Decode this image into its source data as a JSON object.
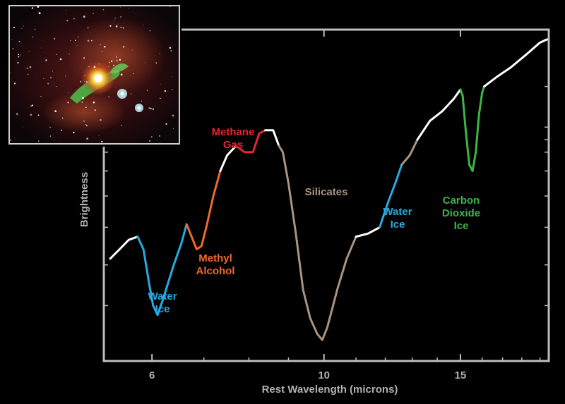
{
  "chart_data": {
    "type": "line",
    "title": "",
    "xlabel": "Rest Wavelength (microns)",
    "ylabel": "Brightness",
    "x_ticks": [
      "6",
      "10",
      "15"
    ],
    "xscale": "log",
    "xlim": [
      5.2,
      19.5
    ],
    "ylim": [
      0,
      1
    ],
    "grid": false,
    "colors": {
      "continuum": "#ffffff",
      "water_ice": "#29a9e0",
      "methyl_alcohol": "#ee6a2a",
      "methane_gas": "#e8242f",
      "silicates": "#a89482",
      "carbon_dioxide_ice": "#3cb54a",
      "axes": "#bdbdbd"
    },
    "series": [
      {
        "feature": "continuum",
        "points": [
          [
            5.3,
            0.3
          ],
          [
            5.45,
            0.33
          ],
          [
            5.6,
            0.36
          ],
          [
            5.75,
            0.37
          ]
        ]
      },
      {
        "feature": "water_ice",
        "points": [
          [
            5.75,
            0.37
          ],
          [
            5.85,
            0.33
          ],
          [
            5.95,
            0.22
          ],
          [
            6.02,
            0.15
          ],
          [
            6.1,
            0.12
          ],
          [
            6.2,
            0.17
          ],
          [
            6.4,
            0.28
          ],
          [
            6.55,
            0.35
          ],
          [
            6.65,
            0.41
          ]
        ]
      },
      {
        "feature": "methyl_alcohol",
        "points": [
          [
            6.65,
            0.41
          ],
          [
            6.75,
            0.37
          ],
          [
            6.85,
            0.33
          ],
          [
            6.95,
            0.34
          ],
          [
            7.05,
            0.4
          ],
          [
            7.2,
            0.5
          ],
          [
            7.35,
            0.58
          ]
        ]
      },
      {
        "feature": "continuum",
        "points": [
          [
            7.35,
            0.58
          ],
          [
            7.5,
            0.63
          ],
          [
            7.7,
            0.66
          ]
        ]
      },
      {
        "feature": "methane_gas",
        "points": [
          [
            7.7,
            0.66
          ],
          [
            7.9,
            0.64
          ],
          [
            8.1,
            0.64
          ],
          [
            8.25,
            0.7
          ],
          [
            8.4,
            0.71
          ]
        ]
      },
      {
        "feature": "continuum",
        "points": [
          [
            8.4,
            0.71
          ],
          [
            8.6,
            0.71
          ],
          [
            8.75,
            0.66
          ]
        ]
      },
      {
        "feature": "silicates",
        "points": [
          [
            8.75,
            0.66
          ],
          [
            8.85,
            0.64
          ],
          [
            9.0,
            0.54
          ],
          [
            9.2,
            0.38
          ],
          [
            9.4,
            0.2
          ],
          [
            9.6,
            0.11
          ],
          [
            9.8,
            0.06
          ],
          [
            9.95,
            0.04
          ],
          [
            10.1,
            0.08
          ],
          [
            10.4,
            0.2
          ],
          [
            10.7,
            0.3
          ],
          [
            11.0,
            0.37
          ]
        ]
      },
      {
        "feature": "continuum",
        "points": [
          [
            11.0,
            0.37
          ],
          [
            11.4,
            0.38
          ],
          [
            11.8,
            0.4
          ]
        ]
      },
      {
        "feature": "water_ice",
        "points": [
          [
            11.8,
            0.4
          ],
          [
            12.1,
            0.48
          ],
          [
            12.4,
            0.55
          ],
          [
            12.6,
            0.6
          ]
        ]
      },
      {
        "feature": "silicates",
        "points": [
          [
            12.6,
            0.6
          ],
          [
            12.9,
            0.63
          ],
          [
            13.2,
            0.68
          ]
        ]
      },
      {
        "feature": "continuum",
        "points": [
          [
            13.2,
            0.68
          ],
          [
            13.7,
            0.74
          ],
          [
            14.2,
            0.77
          ],
          [
            14.7,
            0.81
          ],
          [
            15.0,
            0.84
          ]
        ]
      },
      {
        "feature": "carbon_dioxide_ice",
        "points": [
          [
            15.0,
            0.84
          ],
          [
            15.1,
            0.82
          ],
          [
            15.25,
            0.7
          ],
          [
            15.4,
            0.6
          ],
          [
            15.55,
            0.58
          ],
          [
            15.7,
            0.64
          ],
          [
            15.85,
            0.76
          ],
          [
            16.0,
            0.83
          ],
          [
            16.1,
            0.85
          ]
        ]
      },
      {
        "feature": "continuum",
        "points": [
          [
            16.1,
            0.85
          ],
          [
            16.7,
            0.88
          ],
          [
            17.4,
            0.91
          ],
          [
            18.2,
            0.95
          ],
          [
            19.0,
            0.99
          ],
          [
            19.4,
            1.0
          ]
        ]
      }
    ],
    "annotations": [
      {
        "lines": [
          "Water",
          "Ice"
        ],
        "feature": "water_ice"
      },
      {
        "lines": [
          "Methyl",
          "Alcohol"
        ],
        "feature": "methyl_alcohol"
      },
      {
        "lines": [
          "Methane",
          "Gas"
        ],
        "feature": "methane_gas"
      },
      {
        "lines": [
          "Silicates"
        ],
        "feature": "silicates"
      },
      {
        "lines": [
          "Water",
          "Ice"
        ],
        "feature": "water_ice"
      },
      {
        "lines": [
          "Carbon",
          "Dioxide",
          "Ice"
        ],
        "feature": "carbon_dioxide_ice"
      }
    ]
  }
}
